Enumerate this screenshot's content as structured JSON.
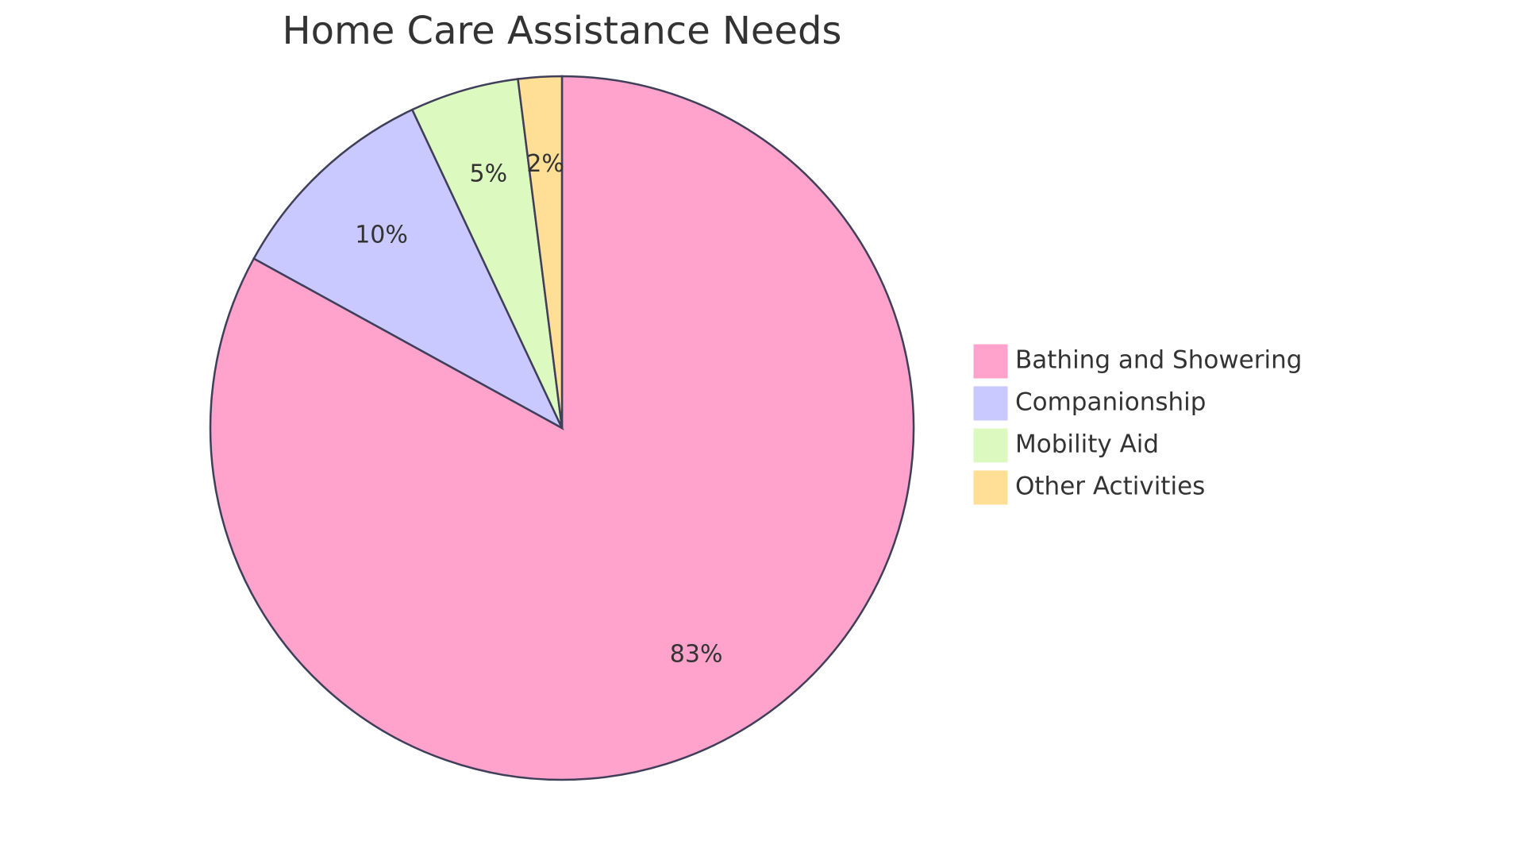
{
  "chart_data": {
    "type": "pie",
    "title": "Home Care Assistance Needs",
    "categories": [
      "Bathing and Showering",
      "Companionship",
      "Mobility Aid",
      "Other Activities"
    ],
    "values": [
      83,
      10,
      5,
      2
    ],
    "value_labels": [
      "83%",
      "10%",
      "5%",
      "2%"
    ],
    "colors": [
      "#ffa3cd",
      "#c9c9ff",
      "#dcfac0",
      "#ffdf95"
    ],
    "legend": "right"
  }
}
